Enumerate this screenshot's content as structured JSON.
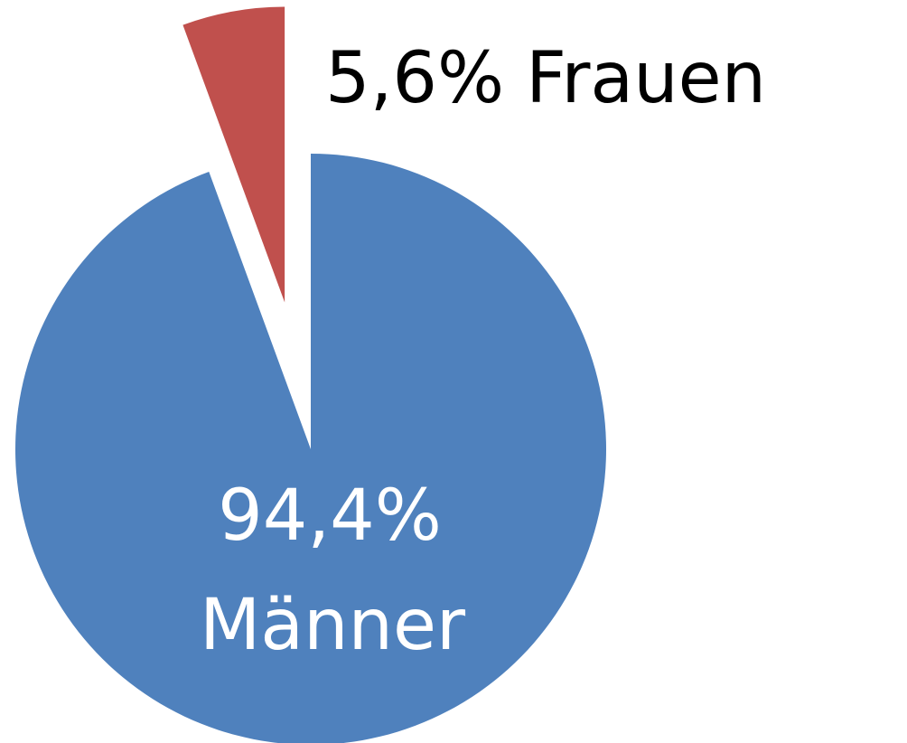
{
  "chart_data": {
    "type": "pie",
    "categories": [
      "Männer",
      "Frauen"
    ],
    "values": [
      94.4,
      5.6
    ],
    "value_labels": [
      "94,4%",
      "5,6%"
    ],
    "colors": [
      "#4f81bd",
      "#c0504d"
    ]
  }
}
